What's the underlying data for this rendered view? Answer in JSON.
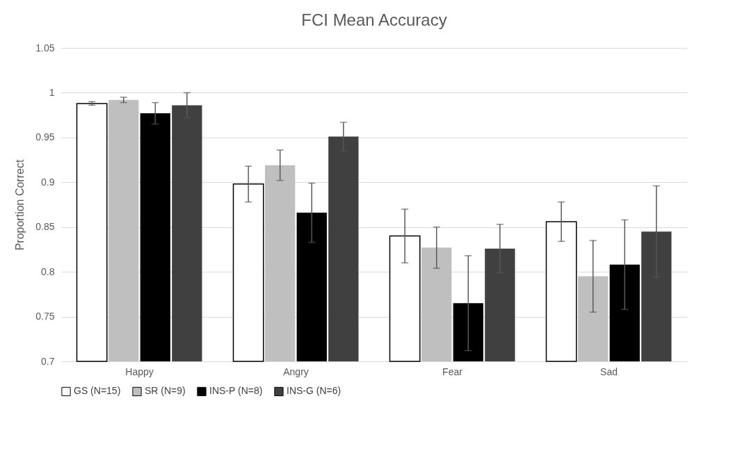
{
  "chart_data": {
    "type": "bar",
    "title": "FCI Mean Accuracy",
    "ylabel": "Proportion Correct",
    "categories": [
      "Happy",
      "Angry",
      "Fear",
      "Sad"
    ],
    "series": [
      {
        "name": "GS (N=15)",
        "color": "#ffffff",
        "values": [
          0.988,
          0.898,
          0.84,
          0.856
        ],
        "errors": [
          0.002,
          0.02,
          0.03,
          0.022
        ]
      },
      {
        "name": "SR (N=9)",
        "color": "#bfbfbf",
        "values": [
          0.992,
          0.919,
          0.827,
          0.795
        ],
        "errors": [
          0.003,
          0.017,
          0.023,
          0.04
        ]
      },
      {
        "name": "INS-P (N=8)",
        "color": "#000000",
        "values": [
          0.977,
          0.866,
          0.765,
          0.808
        ],
        "errors": [
          0.012,
          0.033,
          0.053,
          0.05
        ]
      },
      {
        "name": "INS-G (N=6)",
        "color": "#404040",
        "values": [
          0.986,
          0.951,
          0.826,
          0.845
        ],
        "errors": [
          0.014,
          0.016,
          0.027,
          0.051
        ]
      }
    ],
    "ylim": [
      0.7,
      1.05
    ],
    "yticks": [
      0.7,
      0.75,
      0.8,
      0.85,
      0.9,
      0.95,
      1,
      1.05
    ],
    "grid": "y",
    "legend": "bottom"
  }
}
